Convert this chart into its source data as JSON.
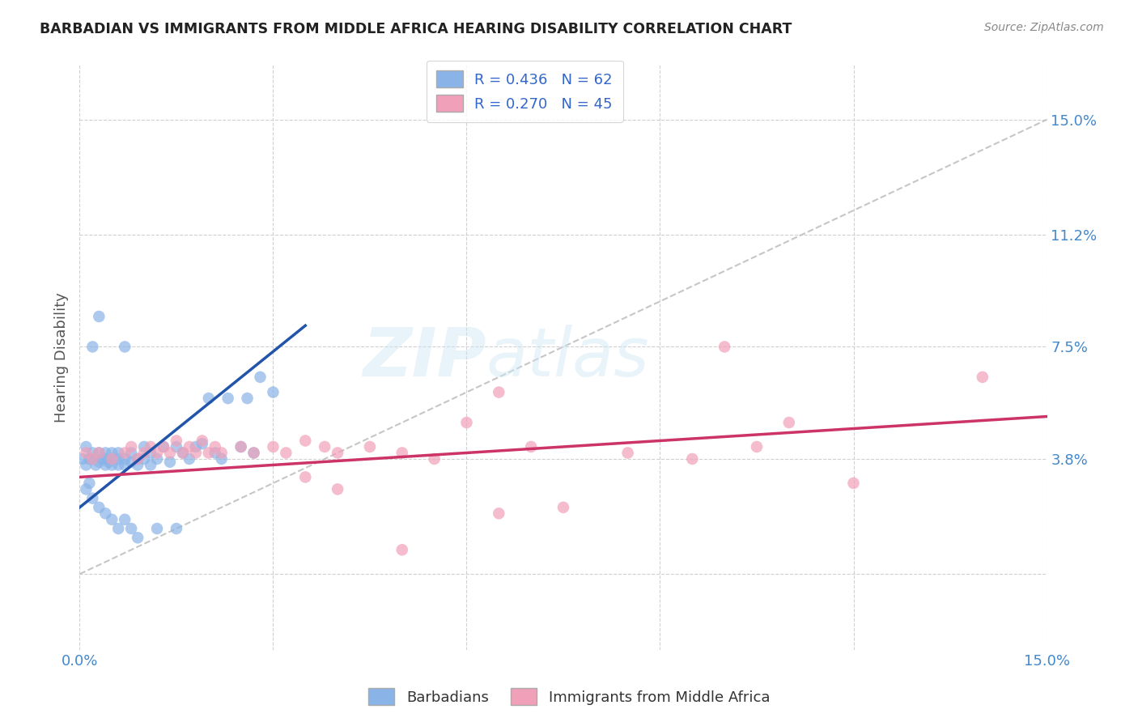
{
  "title": "BARBADIAN VS IMMIGRANTS FROM MIDDLE AFRICA HEARING DISABILITY CORRELATION CHART",
  "source": "Source: ZipAtlas.com",
  "ylabel": "Hearing Disability",
  "xlim": [
    0.0,
    0.15
  ],
  "ylim": [
    -0.025,
    0.168
  ],
  "ytick_labels": [
    "",
    "3.8%",
    "7.5%",
    "11.2%",
    "15.0%"
  ],
  "ytick_vals": [
    0.0,
    0.038,
    0.075,
    0.112,
    0.15
  ],
  "xtick_labels": [
    "0.0%",
    "",
    "",
    "",
    "",
    "15.0%"
  ],
  "xtick_vals": [
    0.0,
    0.03,
    0.06,
    0.09,
    0.12,
    0.15
  ],
  "blue_R": 0.436,
  "blue_N": 62,
  "pink_R": 0.27,
  "pink_N": 45,
  "blue_color": "#8ab4e8",
  "pink_color": "#f0a0b8",
  "blue_line_color": "#2255aa",
  "pink_line_color": "#cc3366",
  "dashed_line_color": "#c0c0c0",
  "watermark": "ZIPatlas",
  "blue_line_x0": 0.0,
  "blue_line_y0": 0.022,
  "blue_line_x1": 0.035,
  "blue_line_y1": 0.082,
  "pink_line_x0": 0.0,
  "pink_line_y0": 0.032,
  "pink_line_x1": 0.15,
  "pink_line_y1": 0.052,
  "blue_scatter_x": [
    0.0005,
    0.001,
    0.001,
    0.0015,
    0.002,
    0.002,
    0.002,
    0.0025,
    0.003,
    0.003,
    0.003,
    0.0035,
    0.004,
    0.004,
    0.004,
    0.0045,
    0.005,
    0.005,
    0.005,
    0.006,
    0.006,
    0.006,
    0.007,
    0.007,
    0.007,
    0.008,
    0.008,
    0.009,
    0.009,
    0.01,
    0.01,
    0.011,
    0.011,
    0.012,
    0.013,
    0.014,
    0.015,
    0.016,
    0.017,
    0.018,
    0.019,
    0.02,
    0.021,
    0.022,
    0.023,
    0.025,
    0.026,
    0.027,
    0.028,
    0.03,
    0.001,
    0.0015,
    0.002,
    0.003,
    0.004,
    0.005,
    0.006,
    0.007,
    0.008,
    0.009,
    0.012,
    0.015
  ],
  "blue_scatter_y": [
    0.038,
    0.042,
    0.036,
    0.038,
    0.038,
    0.04,
    0.075,
    0.036,
    0.037,
    0.04,
    0.085,
    0.038,
    0.036,
    0.038,
    0.04,
    0.037,
    0.036,
    0.038,
    0.04,
    0.036,
    0.038,
    0.04,
    0.036,
    0.038,
    0.075,
    0.037,
    0.04,
    0.036,
    0.038,
    0.038,
    0.042,
    0.036,
    0.04,
    0.038,
    0.042,
    0.037,
    0.042,
    0.04,
    0.038,
    0.042,
    0.043,
    0.058,
    0.04,
    0.038,
    0.058,
    0.042,
    0.058,
    0.04,
    0.065,
    0.06,
    0.028,
    0.03,
    0.025,
    0.022,
    0.02,
    0.018,
    0.015,
    0.018,
    0.015,
    0.012,
    0.015,
    0.015
  ],
  "pink_scatter_x": [
    0.001,
    0.002,
    0.003,
    0.005,
    0.007,
    0.008,
    0.009,
    0.01,
    0.011,
    0.012,
    0.013,
    0.014,
    0.015,
    0.016,
    0.017,
    0.018,
    0.019,
    0.02,
    0.021,
    0.022,
    0.025,
    0.027,
    0.03,
    0.032,
    0.035,
    0.038,
    0.04,
    0.045,
    0.05,
    0.055,
    0.06,
    0.065,
    0.07,
    0.075,
    0.085,
    0.095,
    0.1,
    0.105,
    0.11,
    0.035,
    0.04,
    0.05,
    0.065,
    0.12,
    0.14
  ],
  "pink_scatter_y": [
    0.04,
    0.038,
    0.04,
    0.038,
    0.04,
    0.042,
    0.038,
    0.04,
    0.042,
    0.04,
    0.042,
    0.04,
    0.044,
    0.04,
    0.042,
    0.04,
    0.044,
    0.04,
    0.042,
    0.04,
    0.042,
    0.04,
    0.042,
    0.04,
    0.044,
    0.042,
    0.04,
    0.042,
    0.04,
    0.038,
    0.05,
    0.06,
    0.042,
    0.022,
    0.04,
    0.038,
    0.075,
    0.042,
    0.05,
    0.032,
    0.028,
    0.008,
    0.02,
    0.03,
    0.065
  ]
}
